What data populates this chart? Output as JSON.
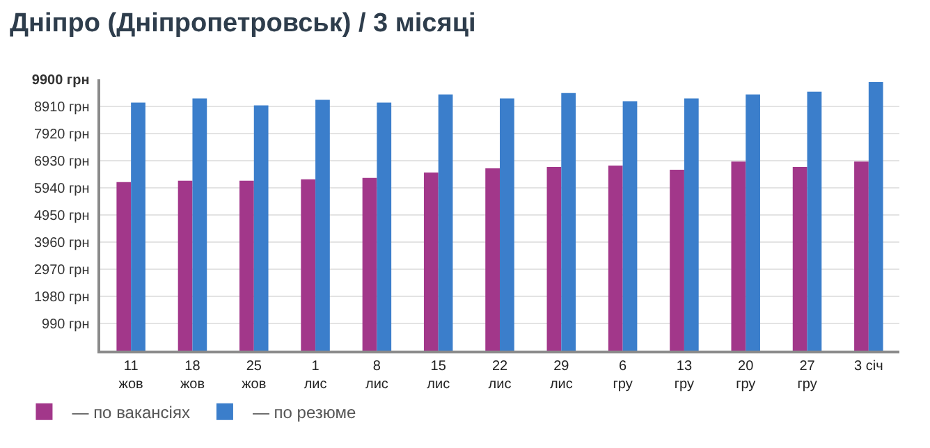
{
  "chart_data": {
    "type": "bar",
    "title": "Дніпро (Дніпропетровськ) / 3 місяці",
    "categories": [
      "11\nжов",
      "18\nжов",
      "25\nжов",
      "1\nлис",
      "8\nлис",
      "15\nлис",
      "22\nлис",
      "29\nлис",
      "6\nгру",
      "13\nгру",
      "20\nгру",
      "27\nгру",
      "3 січ"
    ],
    "series": [
      {
        "name": "— по вакансіях",
        "color": "#a2378a",
        "values": [
          6150,
          6200,
          6200,
          6250,
          6300,
          6500,
          6650,
          6700,
          6750,
          6600,
          6900,
          6700,
          6900
        ]
      },
      {
        "name": "— по резюме",
        "color": "#3b7ecb",
        "values": [
          9050,
          9200,
          8950,
          9150,
          9050,
          9350,
          9200,
          9400,
          9100,
          9200,
          9350,
          9450,
          9800
        ]
      }
    ],
    "ylim": [
      0,
      9900
    ],
    "yticks": [
      {
        "value": 990,
        "label": "990 грн"
      },
      {
        "value": 1980,
        "label": "1980 грн"
      },
      {
        "value": 2970,
        "label": "2970 грн"
      },
      {
        "value": 3960,
        "label": "3960 грн"
      },
      {
        "value": 4950,
        "label": "4950 грн"
      },
      {
        "value": 5940,
        "label": "5940 грн"
      },
      {
        "value": 6930,
        "label": "6930 грн"
      },
      {
        "value": 7920,
        "label": "7920 грн"
      },
      {
        "value": 8910,
        "label": "8910 грн"
      },
      {
        "value": 9900,
        "label": "9900 грн"
      }
    ],
    "grid": "y",
    "legend": "bottom left"
  }
}
